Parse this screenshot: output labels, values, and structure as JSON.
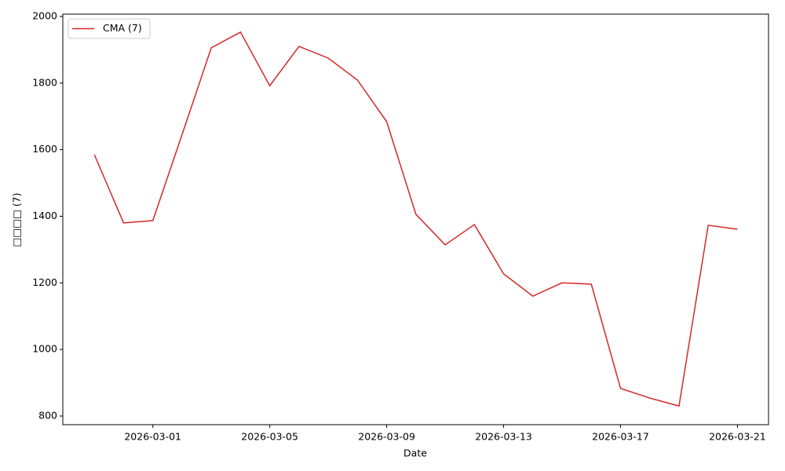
{
  "chart_data": {
    "type": "line",
    "xlabel": "Date",
    "ylabel": "□□□□ (7)",
    "x": [
      "2026-02-27",
      "2026-02-28",
      "2026-03-01",
      "2026-03-02",
      "2026-03-03",
      "2026-03-04",
      "2026-03-05",
      "2026-03-06",
      "2026-03-07",
      "2026-03-08",
      "2026-03-09",
      "2026-03-10",
      "2026-03-11",
      "2026-03-12",
      "2026-03-13",
      "2026-03-14",
      "2026-03-15",
      "2026-03-16",
      "2026-03-17",
      "2026-03-18",
      "2026-03-19",
      "2026-03-20",
      "2026-03-21"
    ],
    "series": [
      {
        "name": "CMA (7)",
        "color": "#d62728",
        "values": [
          1585,
          1380,
          1387,
          1645,
          1906,
          1953,
          1792,
          1910,
          1875,
          1809,
          1684,
          1406,
          1314,
          1375,
          1227,
          1160,
          1200,
          1196,
          883,
          854,
          830,
          1373,
          1361
        ]
      }
    ],
    "xlim": [
      "2026-02-25T22:05Z",
      "2026-03-22T01:30Z"
    ],
    "xticks": [
      "2026-03-01",
      "2026-03-05",
      "2026-03-09",
      "2026-03-13",
      "2026-03-17",
      "2026-03-21"
    ],
    "ylim": [
      774,
      2007
    ],
    "yticks": [
      800,
      1000,
      1200,
      1400,
      1600,
      1800,
      2000
    ],
    "legend": "upper left"
  }
}
